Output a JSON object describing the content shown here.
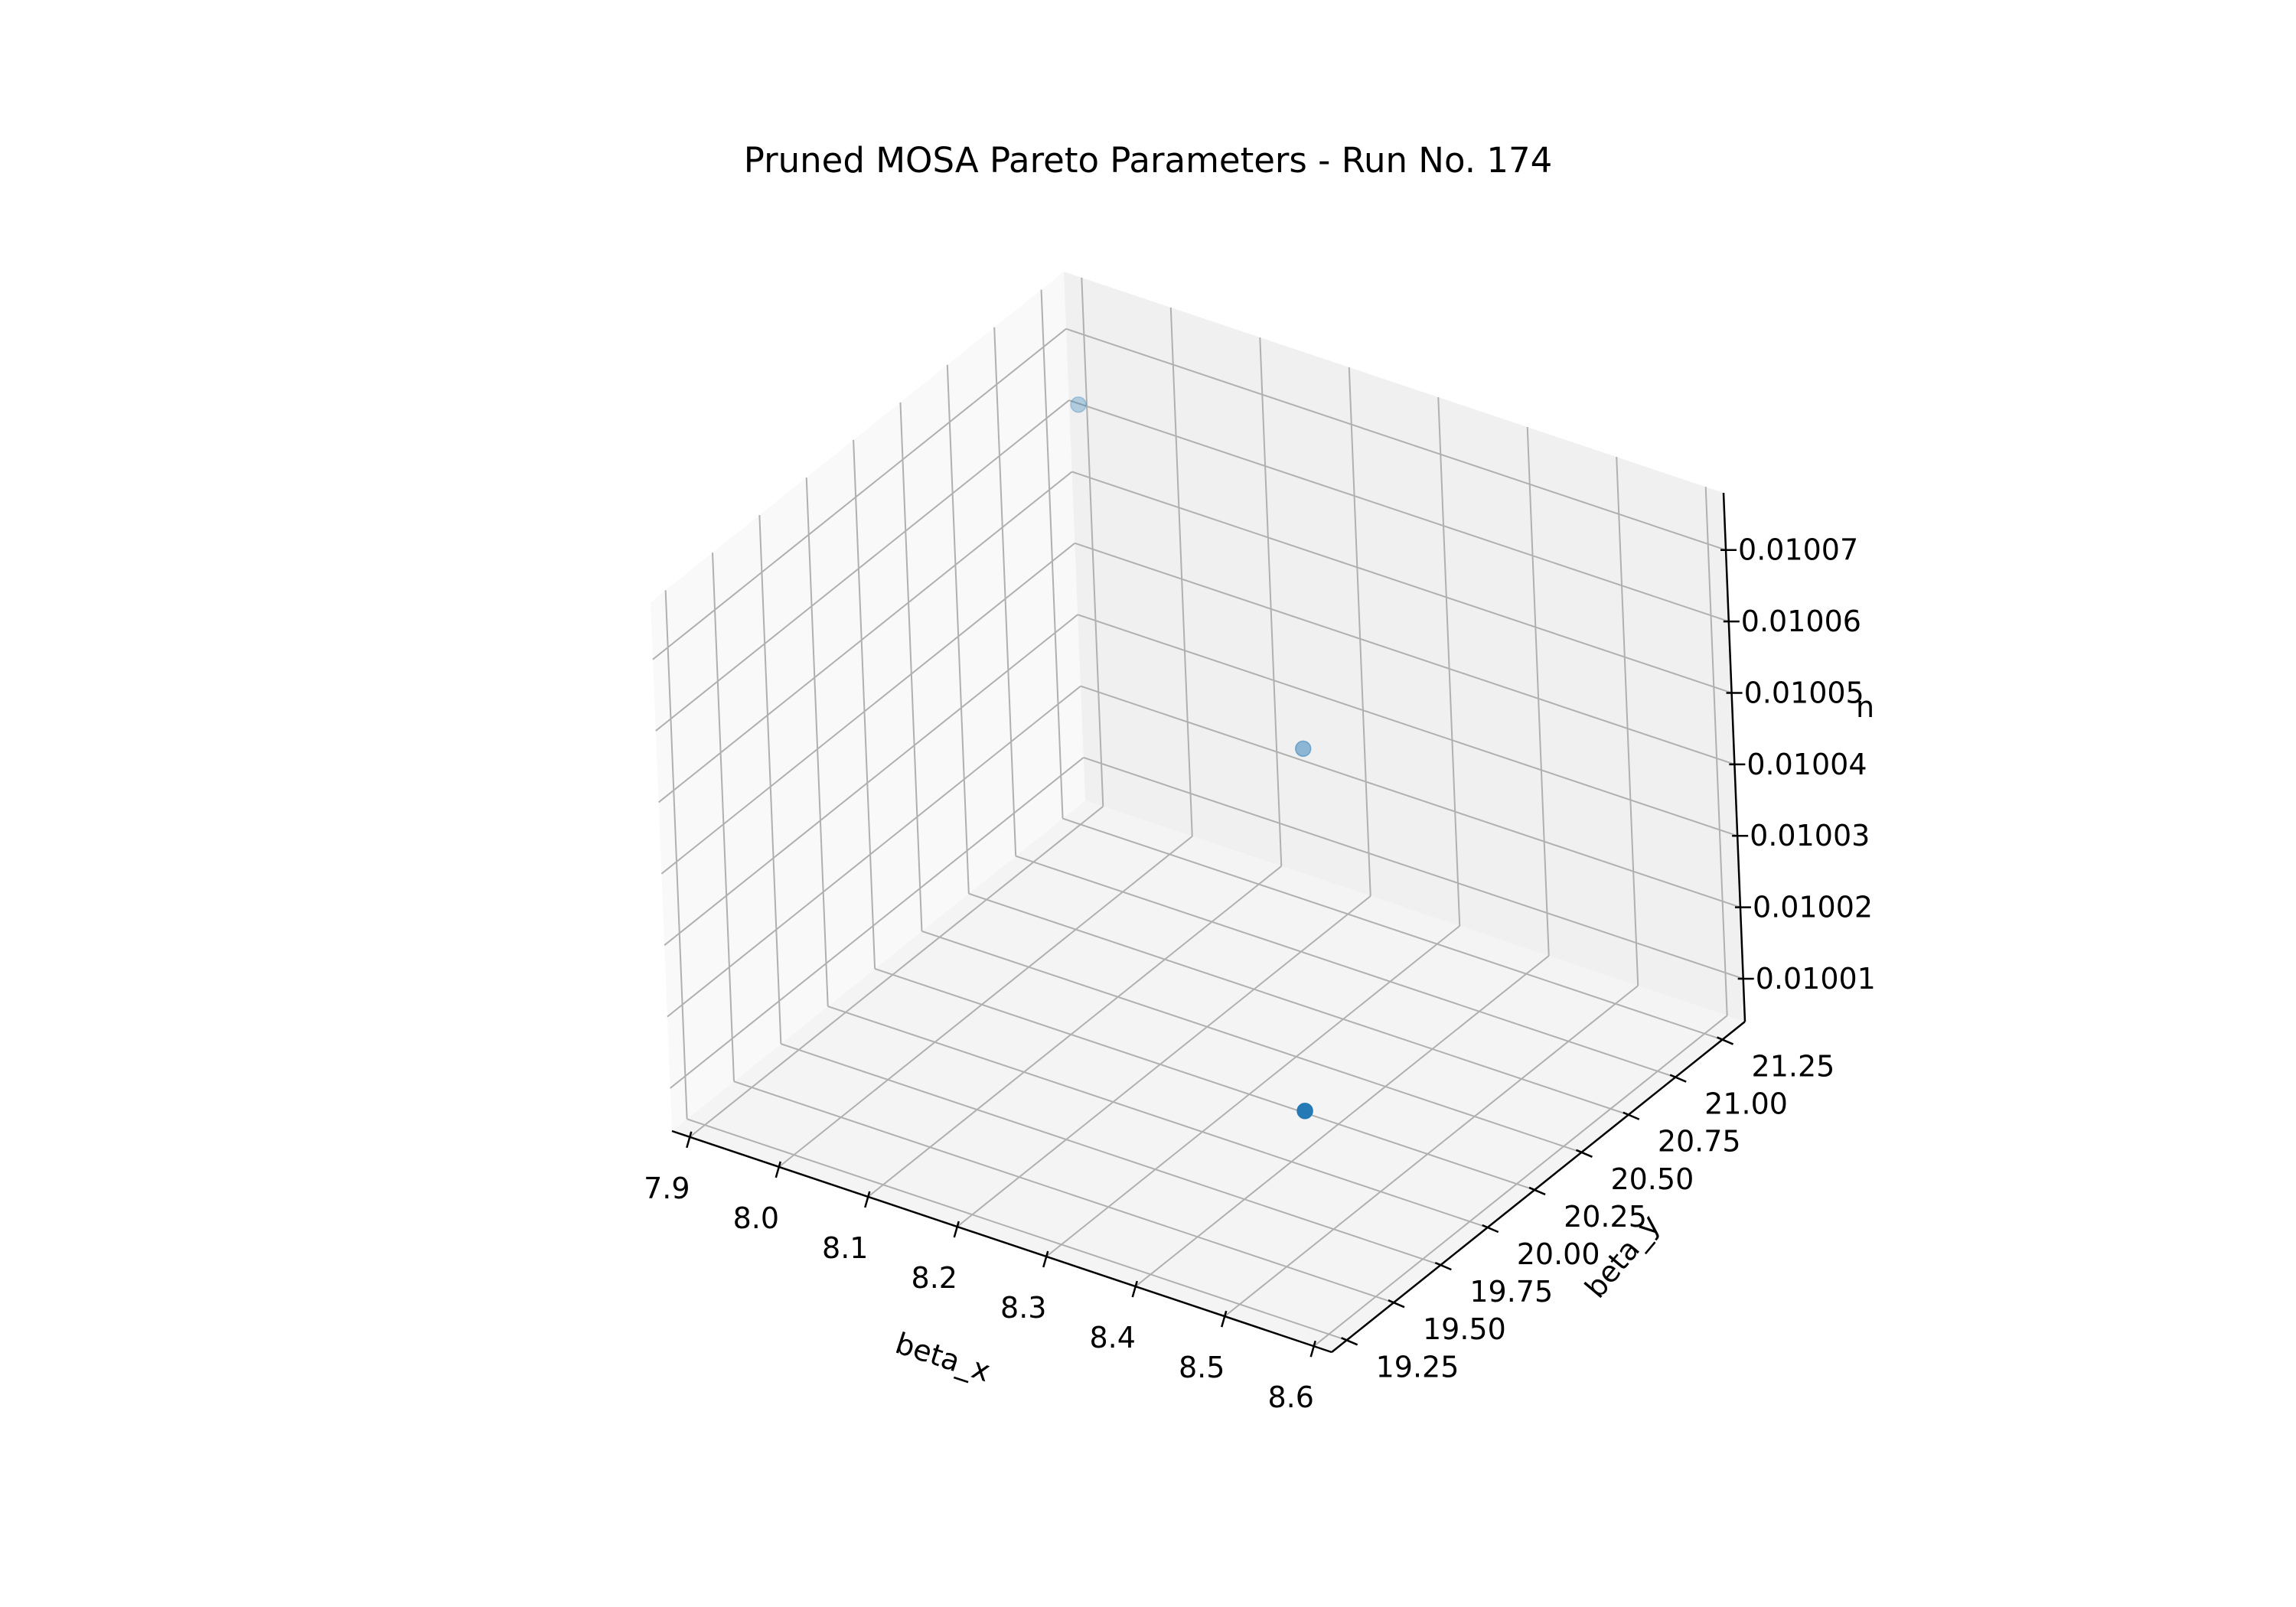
{
  "chart_data": {
    "type": "scatter3d",
    "title": "Pruned MOSA Pareto Parameters - Run No. 174",
    "xlabel": "beta_x",
    "ylabel": "beta_y",
    "zlabel": "n",
    "x_ticks": [
      "7.9",
      "8.0",
      "8.1",
      "8.2",
      "8.3",
      "8.4",
      "8.5",
      "8.6"
    ],
    "y_ticks": [
      "19.25",
      "19.50",
      "19.75",
      "20.00",
      "20.25",
      "20.50",
      "20.75",
      "21.00",
      "21.25"
    ],
    "z_ticks": [
      "0.01001",
      "0.01002",
      "0.01003",
      "0.01004",
      "0.01005",
      "0.01006",
      "0.01007"
    ],
    "xlim": [
      7.88,
      8.62
    ],
    "ylim": [
      19.17,
      21.37
    ],
    "zlim": [
      0.010004,
      0.010078
    ],
    "grid": true,
    "marker_color": "#1f77b4",
    "points": [
      {
        "x": 7.95,
        "y": 21.1,
        "z": 0.010068
      },
      {
        "x": 8.3,
        "y": 20.6,
        "z": 0.010045
      },
      {
        "x": 8.55,
        "y": 19.4,
        "z": 0.01003
      }
    ]
  }
}
